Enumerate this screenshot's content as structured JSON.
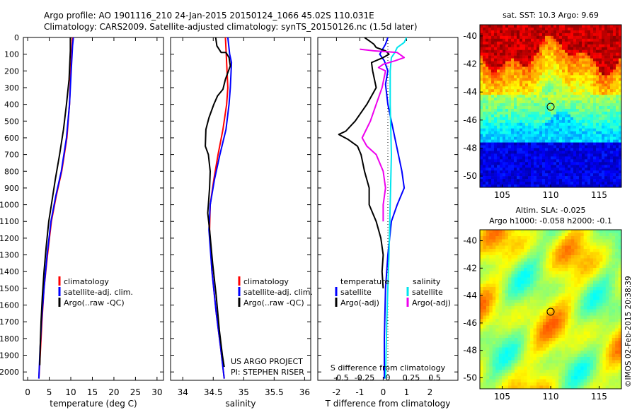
{
  "header": {
    "line1": "Argo profile: AO 1901116_210 24-Jan-2015 20150124_1066 45.02S 110.031E",
    "line2": "Climatology: CARS2009. Satellite-adjusted climatology: synTS_20150126.nc (1.5d later)"
  },
  "colors": {
    "climatology": "#ff0000",
    "satellite": "#0000ff",
    "argo": "#000000",
    "sal_satellite": "#00e5ee",
    "sal_argo": "#ee00ee"
  },
  "chart_data": [
    {
      "type": "line",
      "name": "temperature-profile",
      "xlabel": "temperature (deg C)",
      "ylabel": "",
      "xlim": [
        -1,
        31.5
      ],
      "ylim": [
        2050,
        0
      ],
      "xticks": [
        0,
        5,
        10,
        15,
        20,
        25,
        30
      ],
      "yticks": [
        0,
        100,
        200,
        300,
        400,
        500,
        600,
        700,
        800,
        900,
        1000,
        1100,
        1200,
        1300,
        1400,
        1500,
        1600,
        1700,
        1800,
        1900,
        2000
      ],
      "legend": [
        "climatology",
        "satellite-adj. clim.",
        "Argo(..raw -QC)"
      ],
      "series": [
        {
          "name": "climatology",
          "color": "#ff0000",
          "points": [
            [
              10.4,
              0
            ],
            [
              10.3,
              50
            ],
            [
              10.0,
              200
            ],
            [
              9.7,
              400
            ],
            [
              9.1,
              600
            ],
            [
              7.9,
              800
            ],
            [
              6.6,
              950
            ],
            [
              5.5,
              1100
            ],
            [
              4.6,
              1300
            ],
            [
              3.8,
              1500
            ],
            [
              3.3,
              1700
            ],
            [
              2.9,
              1900
            ],
            [
              2.6,
              2040
            ]
          ]
        },
        {
          "name": "satellite-adj. clim.",
          "color": "#0000ff",
          "points": [
            [
              10.6,
              0
            ],
            [
              10.4,
              50
            ],
            [
              10.1,
              200
            ],
            [
              9.7,
              400
            ],
            [
              9.0,
              600
            ],
            [
              7.8,
              800
            ],
            [
              6.5,
              950
            ],
            [
              5.4,
              1100
            ],
            [
              4.5,
              1300
            ],
            [
              3.8,
              1500
            ],
            [
              3.2,
              1700
            ],
            [
              2.8,
              1900
            ],
            [
              2.6,
              2040
            ]
          ]
        },
        {
          "name": "Argo(..raw -QC)",
          "color": "#000000",
          "points": [
            [
              9.9,
              0
            ],
            [
              9.9,
              80
            ],
            [
              9.6,
              250
            ],
            [
              9.0,
              400
            ],
            [
              8.3,
              550
            ],
            [
              7.4,
              700
            ],
            [
              6.4,
              850
            ],
            [
              5.5,
              1000
            ],
            [
              4.9,
              1100
            ],
            [
              4.3,
              1250
            ],
            [
              3.8,
              1400
            ],
            [
              3.4,
              1550
            ],
            [
              3.1,
              1700
            ],
            [
              2.9,
              1850
            ],
            [
              2.8,
              1960
            ]
          ]
        }
      ]
    },
    {
      "type": "line",
      "name": "salinity-profile",
      "xlabel": "salinity",
      "ylabel": "",
      "xlim": [
        33.8,
        36.1
      ],
      "ylim": [
        2050,
        0
      ],
      "xticks": [
        34,
        34.5,
        35,
        35.5,
        36
      ],
      "legend": [
        "climatology",
        "satellite-adj. clim.",
        "Argo(..raw -QC)"
      ],
      "annotations": [
        "US ARGO PROJECT",
        "PI: STEPHEN RISER"
      ],
      "series": [
        {
          "name": "climatology",
          "color": "#ff0000",
          "points": [
            [
              34.7,
              0
            ],
            [
              34.72,
              150
            ],
            [
              34.74,
              300
            ],
            [
              34.72,
              400
            ],
            [
              34.66,
              550
            ],
            [
              34.58,
              700
            ],
            [
              34.51,
              850
            ],
            [
              34.45,
              1000
            ],
            [
              34.44,
              1150
            ],
            [
              34.48,
              1400
            ],
            [
              34.55,
              1650
            ],
            [
              34.62,
              1850
            ],
            [
              34.68,
              2040
            ]
          ]
        },
        {
          "name": "satellite-adj. clim.",
          "color": "#0000ff",
          "points": [
            [
              34.74,
              0
            ],
            [
              34.77,
              100
            ],
            [
              34.8,
              150
            ],
            [
              34.78,
              300
            ],
            [
              34.76,
              400
            ],
            [
              34.71,
              550
            ],
            [
              34.61,
              700
            ],
            [
              34.52,
              850
            ],
            [
              34.45,
              1000
            ],
            [
              34.43,
              1150
            ],
            [
              34.48,
              1400
            ],
            [
              34.55,
              1650
            ],
            [
              34.62,
              1850
            ],
            [
              34.68,
              2040
            ]
          ]
        },
        {
          "name": "Argo(..raw -QC)",
          "color": "#000000",
          "points": [
            [
              34.54,
              0
            ],
            [
              34.56,
              50
            ],
            [
              34.63,
              90
            ],
            [
              34.71,
              90
            ],
            [
              34.76,
              120
            ],
            [
              34.78,
              170
            ],
            [
              34.7,
              250
            ],
            [
              34.66,
              310
            ],
            [
              34.57,
              350
            ],
            [
              34.51,
              400
            ],
            [
              34.43,
              480
            ],
            [
              34.38,
              550
            ],
            [
              34.37,
              650
            ],
            [
              34.42,
              700
            ],
            [
              34.45,
              800
            ],
            [
              34.44,
              900
            ],
            [
              34.42,
              1000
            ],
            [
              34.41,
              1050
            ],
            [
              34.44,
              1150
            ],
            [
              34.49,
              1350
            ],
            [
              34.55,
              1550
            ],
            [
              34.6,
              1750
            ],
            [
              34.65,
              1900
            ],
            [
              34.68,
              1970
            ]
          ]
        }
      ]
    },
    {
      "type": "line",
      "name": "difference-profile",
      "xlabel": "T difference from climatology",
      "xlabel_top": "S difference from climatology",
      "xlim": [
        -2.8,
        3.2
      ],
      "ylim": [
        2050,
        0
      ],
      "xticks": [
        -2,
        -1,
        0,
        1,
        2
      ],
      "sticks_labels": [
        "-0.5",
        "-0.25",
        "0",
        "0.25",
        "0.5"
      ],
      "sticks_positions_T": [
        -2,
        -1,
        0,
        1,
        2
      ],
      "legend_headers": [
        "temperature",
        "salinity"
      ],
      "legend": [
        "satellite",
        "Argo(-adj)",
        "satellite",
        "Argo(-adj)"
      ],
      "series": [
        {
          "name": "temperature satellite",
          "color": "#0000ff",
          "points": [
            [
              0.2,
              0
            ],
            [
              0.1,
              40
            ],
            [
              -0.15,
              100
            ],
            [
              0.05,
              140
            ],
            [
              0.2,
              200
            ],
            [
              0.1,
              280
            ],
            [
              0.2,
              400
            ],
            [
              0.5,
              600
            ],
            [
              0.8,
              800
            ],
            [
              0.9,
              900
            ],
            [
              0.6,
              1000
            ],
            [
              0.35,
              1100
            ],
            [
              0.2,
              1300
            ],
            [
              0.1,
              1500
            ],
            [
              0.05,
              1800
            ],
            [
              0.05,
              2040
            ]
          ]
        },
        {
          "name": "temperature Argo(-adj)",
          "color": "#000000",
          "points": [
            [
              -0.8,
              0
            ],
            [
              -0.6,
              20
            ],
            [
              -0.4,
              40
            ],
            [
              -0.3,
              60
            ],
            [
              0.1,
              80
            ],
            [
              0.25,
              100
            ],
            [
              0.0,
              120
            ],
            [
              -0.5,
              150
            ],
            [
              -0.45,
              200
            ],
            [
              -0.3,
              300
            ],
            [
              -0.7,
              400
            ],
            [
              -1.2,
              500
            ],
            [
              -1.6,
              560
            ],
            [
              -1.9,
              580
            ],
            [
              -1.5,
              610
            ],
            [
              -1.1,
              650
            ],
            [
              -0.95,
              700
            ],
            [
              -0.8,
              800
            ],
            [
              -0.6,
              900
            ],
            [
              -0.6,
              1000
            ],
            [
              -0.3,
              1100
            ],
            [
              -0.1,
              1200
            ],
            [
              0.0,
              1300
            ],
            [
              -0.05,
              1400
            ],
            [
              0.0,
              1500
            ]
          ]
        },
        {
          "name": "salinity satellite",
          "color": "#00e5ee",
          "points": [
            [
              1.0,
              0
            ],
            [
              0.9,
              30
            ],
            [
              0.6,
              60
            ],
            [
              0.5,
              90
            ],
            [
              0.35,
              120
            ],
            [
              0.3,
              200
            ],
            [
              0.3,
              400
            ],
            [
              0.35,
              700
            ],
            [
              0.3,
              1000
            ],
            [
              0.25,
              1300
            ],
            [
              0.2,
              1500
            ],
            [
              0.15,
              1700
            ],
            [
              0.1,
              2040
            ]
          ]
        },
        {
          "name": "salinity Argo(-adj)",
          "color": "#ee00ee",
          "points": [
            [
              -1.0,
              70
            ],
            [
              -0.4,
              80
            ],
            [
              0.6,
              90
            ],
            [
              0.9,
              120
            ],
            [
              0.5,
              140
            ],
            [
              0.0,
              160
            ],
            [
              -0.2,
              180
            ],
            [
              0.1,
              200
            ],
            [
              -0.05,
              300
            ],
            [
              -0.3,
              400
            ],
            [
              -0.55,
              500
            ],
            [
              -0.9,
              600
            ],
            [
              -0.7,
              650
            ],
            [
              -0.3,
              700
            ],
            [
              0.0,
              800
            ],
            [
              0.1,
              900
            ],
            [
              0.0,
              1000
            ],
            [
              0.0,
              1100
            ]
          ]
        }
      ]
    }
  ],
  "maps": {
    "sst": {
      "title": "sat. SST: 10.3 Argo: 9.69",
      "xticks": [
        "105",
        "110",
        "115"
      ],
      "yticks": [
        "-40",
        "-42",
        "-44",
        "-46",
        "-48",
        "-50"
      ],
      "xlim": [
        102.7,
        117.3
      ],
      "ylim": [
        -39.2,
        -50.8
      ],
      "marker": [
        110.0,
        -45.0
      ]
    },
    "sla": {
      "title1": "Altim. SLA: -0.025",
      "title2": "Argo h1000: -0.058 h2000: -0.1",
      "xticks": [
        "105",
        "110",
        "115"
      ],
      "yticks": [
        "-40",
        "-42",
        "-44",
        "-46",
        "-48",
        "-50"
      ],
      "xlim": [
        102.7,
        117.3
      ],
      "ylim": [
        -39.2,
        -50.8
      ],
      "marker": [
        110.0,
        -45.0
      ]
    }
  },
  "credit": "©IMOS 02-Feb-2015 20:38:39"
}
